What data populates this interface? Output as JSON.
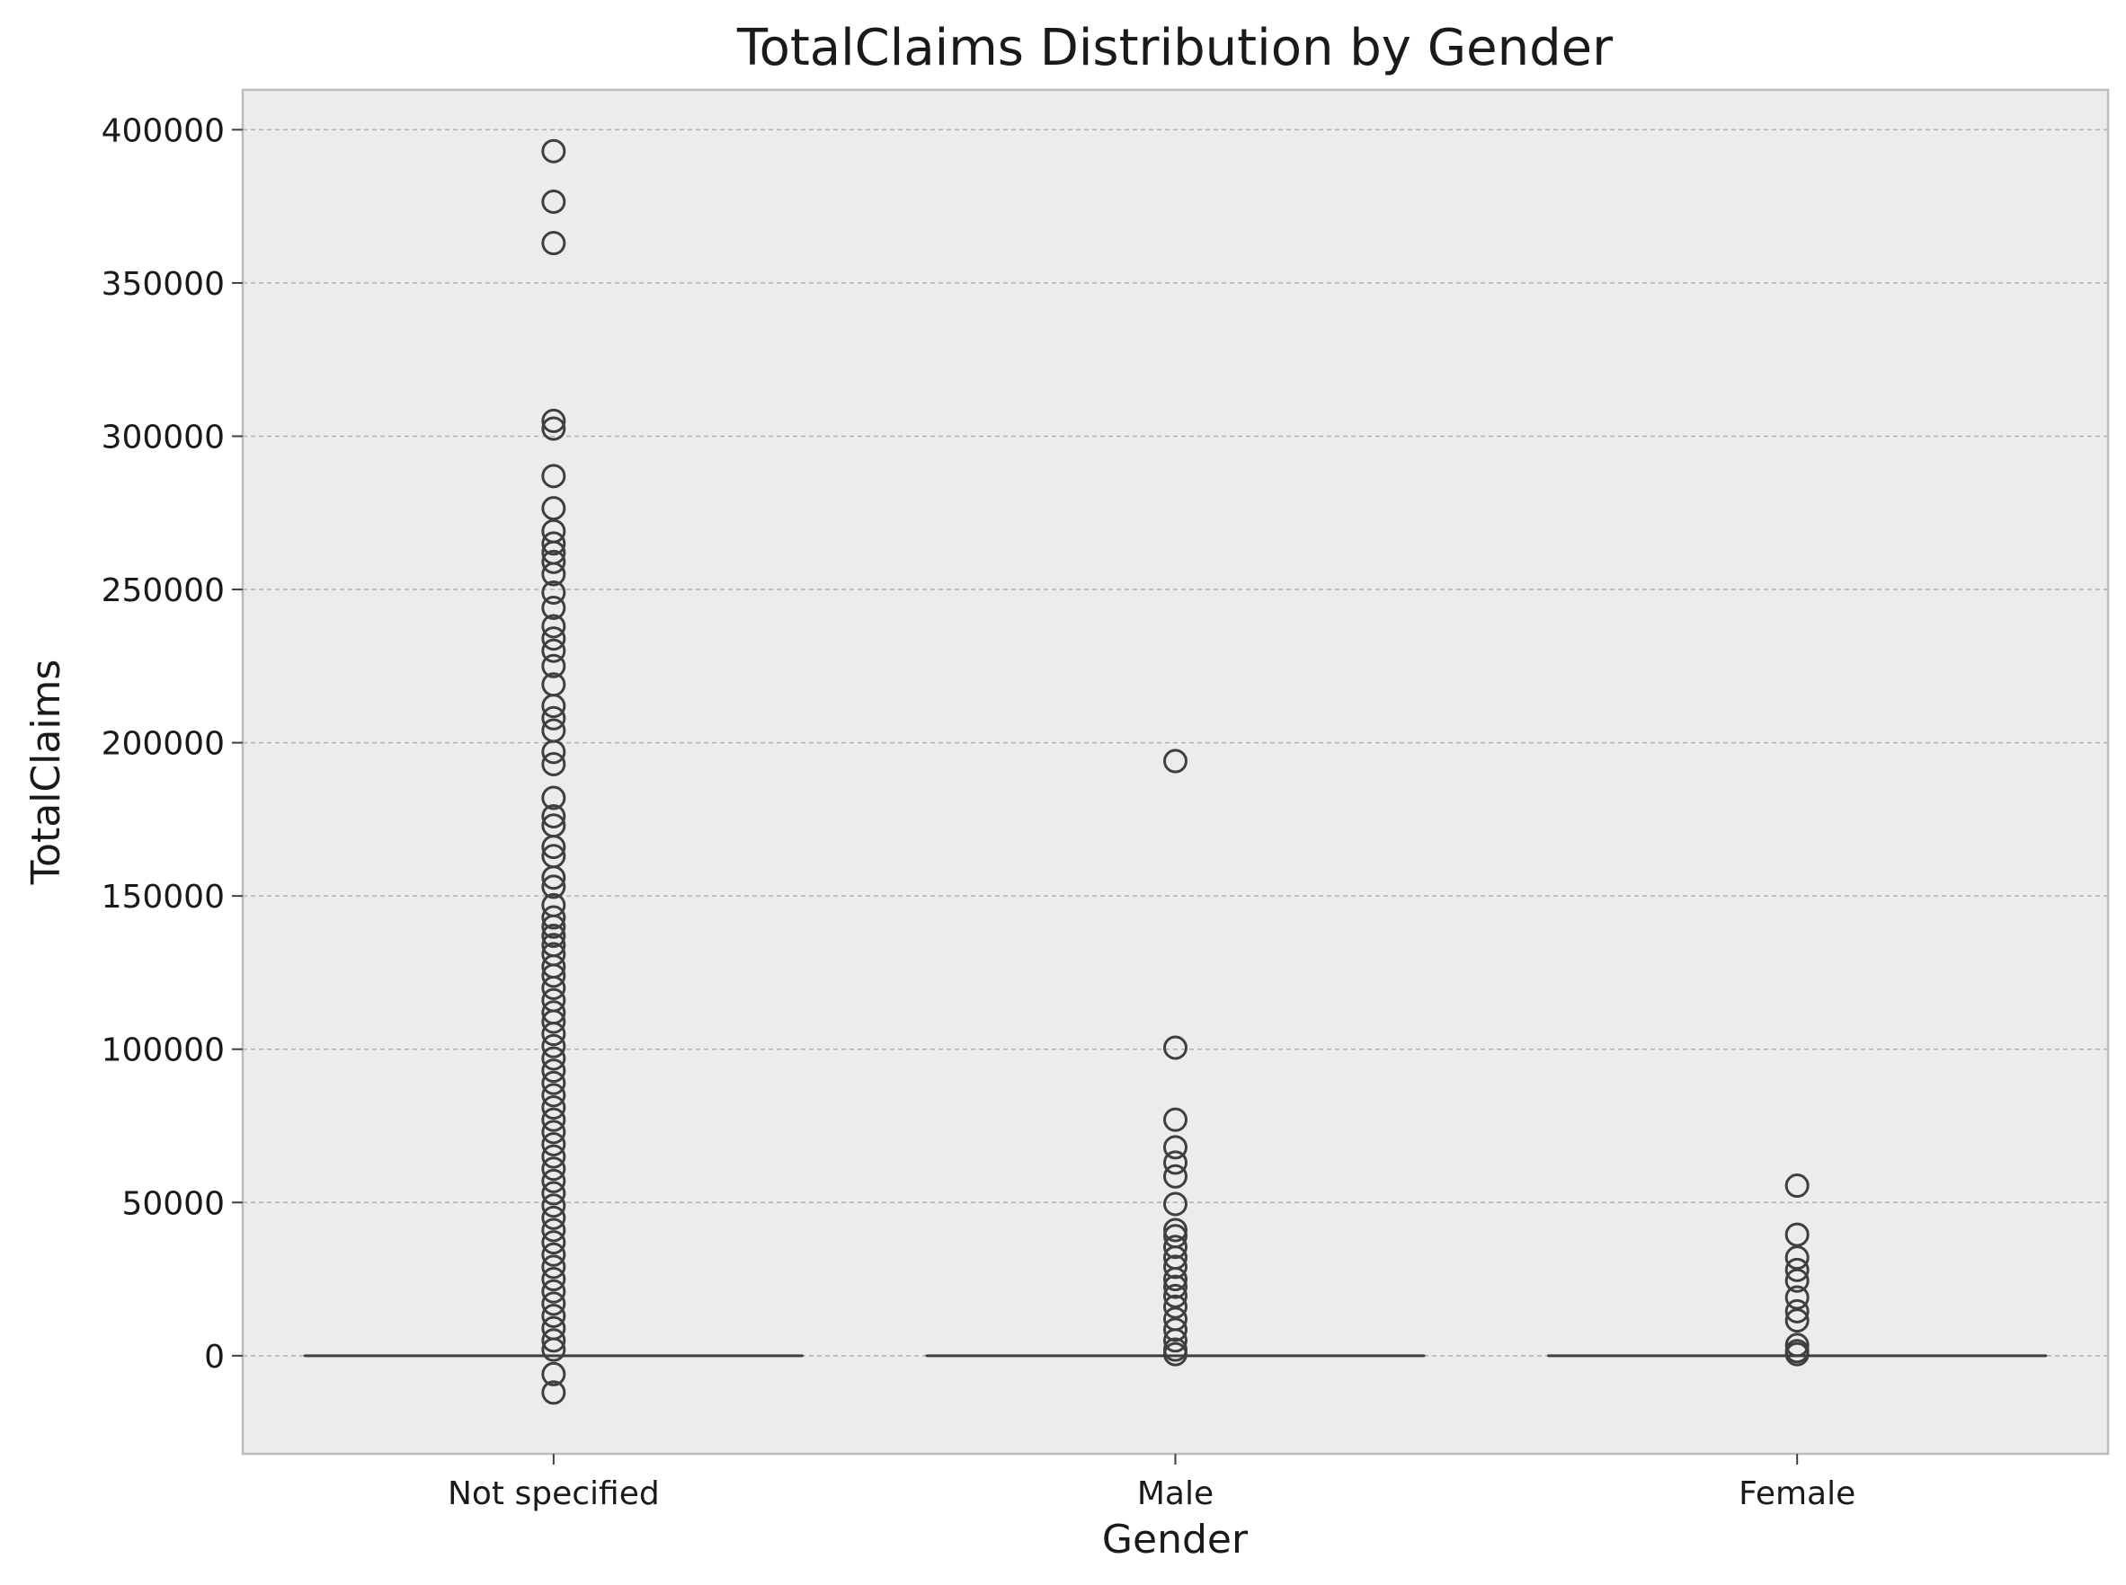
{
  "chart_data": {
    "type": "box",
    "title": "TotalClaims Distribution by Gender",
    "xlabel": "Gender",
    "ylabel": "TotalClaims",
    "ylim": [
      -32000,
      413000
    ],
    "yticks": [
      0,
      50000,
      100000,
      150000,
      200000,
      250000,
      300000,
      350000,
      400000
    ],
    "grid": "y",
    "colors": {
      "plot_bg": "#ececec",
      "grid": "#b0b0b0",
      "mark": "#3f3f3f",
      "frame": "#bcbcbc"
    },
    "categories": [
      "Not specified",
      "Male",
      "Female"
    ],
    "series": [
      {
        "category": "Not specified",
        "q1": 0,
        "median": 0,
        "q3": 0,
        "whisker_low": 0,
        "whisker_high": 0,
        "outliers": [
          393000,
          376500,
          363000,
          305000,
          302500,
          287000,
          276500,
          269000,
          265000,
          262000,
          259000,
          255000,
          249000,
          244000,
          238000,
          234000,
          230000,
          225000,
          219000,
          212000,
          208000,
          204000,
          197000,
          193000,
          182000,
          176000,
          173000,
          166000,
          163000,
          156000,
          153000,
          147000,
          143000,
          140000,
          137000,
          134000,
          131000,
          127000,
          124000,
          120000,
          116000,
          112000,
          109000,
          105000,
          101000,
          97000,
          93000,
          89000,
          85000,
          81000,
          77000,
          73000,
          69000,
          65000,
          61000,
          57000,
          53000,
          49000,
          45000,
          41000,
          37000,
          33000,
          29000,
          25000,
          21000,
          17000,
          13000,
          9000,
          5000,
          2000,
          -6000,
          -12000
        ]
      },
      {
        "category": "Male",
        "q1": 0,
        "median": 0,
        "q3": 0,
        "whisker_low": 0,
        "whisker_high": 0,
        "outliers": [
          194000,
          100500,
          77000,
          68000,
          63000,
          58500,
          49500,
          41000,
          39000,
          35500,
          32000,
          29000,
          25000,
          22500,
          19500,
          16000,
          12000,
          8500,
          5000,
          2000,
          500
        ]
      },
      {
        "category": "Female",
        "q1": 0,
        "median": 0,
        "q3": 0,
        "whisker_low": 0,
        "whisker_high": 0,
        "outliers": [
          55500,
          39500,
          32000,
          28000,
          24500,
          19000,
          14500,
          11500,
          3500,
          1500,
          500
        ]
      }
    ]
  }
}
